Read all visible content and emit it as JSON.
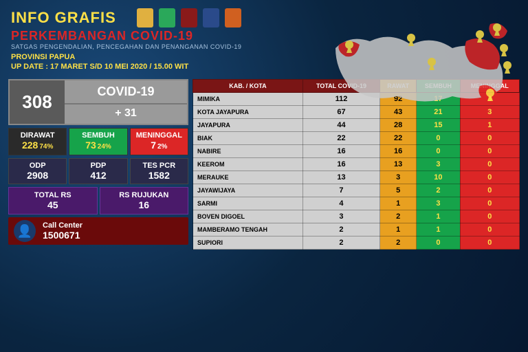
{
  "header": {
    "title": "INFO GRAFIS",
    "subtitle": "PERKEMBANGAN COVID-19",
    "desc": "SATGAS PENGENDALIAN, PENCEGAHAN DAN PENANGANAN COVID-19",
    "province": "PROVINSI PAPUA",
    "update": "UP DATE : 17 MARET S/D 10 MEI 2020 / 15.00 WIT",
    "logo_colors": [
      "#e0b040",
      "#2aa85a",
      "#8a1a1a",
      "#2a4a8a",
      "#d06020"
    ]
  },
  "summary": {
    "total": "308",
    "label": "COVID-19",
    "increment": "+ 31"
  },
  "stats_main": [
    {
      "title": "DIRAWAT",
      "val": "228",
      "pct": "74%",
      "bg": "#2a2a2a",
      "title_color": "#fff",
      "val_color": "#fde047"
    },
    {
      "title": "SEMBUH",
      "val": "73",
      "pct": "24%",
      "bg": "#16a34a",
      "title_color": "#fff",
      "val_color": "#fde047"
    },
    {
      "title": "MENINGGAL",
      "val": "7",
      "pct": "2%",
      "bg": "#dc2626",
      "title_color": "#fff",
      "val_color": "#fff"
    }
  ],
  "stats_mid": [
    {
      "title": "ODP",
      "val": "2908"
    },
    {
      "title": "PDP",
      "val": "412"
    },
    {
      "title": "TES PCR",
      "val": "1582"
    }
  ],
  "stats_bottom": [
    {
      "title": "TOTAL RS",
      "val": "45"
    },
    {
      "title": "RS RUJUKAN",
      "val": "16"
    }
  ],
  "call": {
    "title": "Call Center",
    "number": "1500671"
  },
  "table": {
    "columns": [
      {
        "label": "KAB. / KOTA",
        "bg": "#7a1515"
      },
      {
        "label": "TOTAL COVID-19",
        "bg": "#7a1515"
      },
      {
        "label": "RAWAT",
        "bg": "#e8a020"
      },
      {
        "label": "SEMBUH",
        "bg": "#16a34a"
      },
      {
        "label": "MENINGGAL",
        "bg": "#dc2626"
      }
    ],
    "col_bg": {
      "total": "#d0d0d0",
      "rawat": "#e8a020",
      "sembuh": "#16a34a",
      "meninggal": "#dc2626"
    },
    "col_fg": {
      "total": "#000",
      "rawat": "#000",
      "sembuh": "#fde047",
      "meninggal": "#fde047"
    },
    "rows": [
      {
        "name": "MIMIKA",
        "total": "112",
        "rawat": "92",
        "sembuh": "17",
        "meninggal": "3"
      },
      {
        "name": "KOTA JAYAPURA",
        "total": "67",
        "rawat": "43",
        "sembuh": "21",
        "meninggal": "3"
      },
      {
        "name": "JAYAPURA",
        "total": "44",
        "rawat": "28",
        "sembuh": "15",
        "meninggal": "1"
      },
      {
        "name": "BIAK",
        "total": "22",
        "rawat": "22",
        "sembuh": "0",
        "meninggal": "0"
      },
      {
        "name": "NABIRE",
        "total": "16",
        "rawat": "16",
        "sembuh": "0",
        "meninggal": "0"
      },
      {
        "name": "KEEROM",
        "total": "16",
        "rawat": "13",
        "sembuh": "3",
        "meninggal": "0"
      },
      {
        "name": "MERAUKE",
        "total": "13",
        "rawat": "3",
        "sembuh": "10",
        "meninggal": "0"
      },
      {
        "name": "JAYAWIJAYA",
        "total": "7",
        "rawat": "5",
        "sembuh": "2",
        "meninggal": "0"
      },
      {
        "name": "SARMI",
        "total": "4",
        "rawat": "1",
        "sembuh": "3",
        "meninggal": "0"
      },
      {
        "name": "BOVEN DIGOEL",
        "total": "3",
        "rawat": "2",
        "sembuh": "1",
        "meninggal": "0"
      },
      {
        "name": "MAMBERAMO TENGAH",
        "total": "2",
        "rawat": "1",
        "sembuh": "1",
        "meninggal": "0"
      },
      {
        "name": "SUPIORI",
        "total": "2",
        "rawat": "2",
        "sembuh": "0",
        "meninggal": "0"
      }
    ]
  },
  "map": {
    "land_color": "#c8c8c8",
    "highlight_color": "#dc2626",
    "marker_color": "#fde047"
  }
}
